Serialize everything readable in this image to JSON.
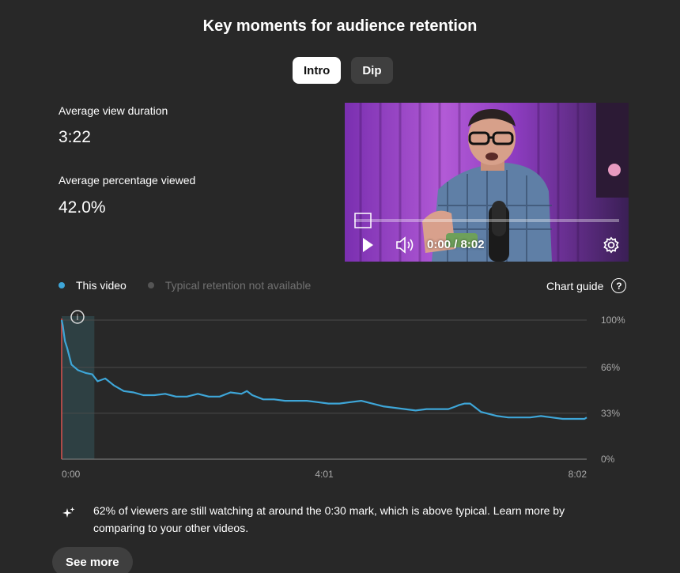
{
  "header": {
    "title": "Key moments for audience retention"
  },
  "tabs": [
    {
      "label": "Intro",
      "active": true
    },
    {
      "label": "Dip",
      "active": false
    }
  ],
  "metrics": {
    "avg_view_duration_label": "Average view duration",
    "avg_view_duration_value": "3:22",
    "avg_pct_viewed_label": "Average percentage viewed",
    "avg_pct_viewed_value": "42.0%"
  },
  "player": {
    "time_display": "0:00 / 8:02",
    "progress": 0.0,
    "icons": [
      "play-icon",
      "volume-icon",
      "settings-gear-icon"
    ]
  },
  "legend": {
    "this_video": "This video",
    "typical": "Typical retention not available",
    "this_video_color": "#3ea6d8",
    "typical_color": "#555555"
  },
  "chart_guide": {
    "label": "Chart guide",
    "icon": "help-icon"
  },
  "chart_data": {
    "type": "line",
    "series": [
      {
        "name": "This video",
        "color": "#3ea6d8",
        "x": [
          0,
          1,
          3,
          5,
          9,
          15,
          22,
          28,
          33,
          40,
          48,
          57,
          66,
          75,
          85,
          95,
          105,
          115,
          125,
          135,
          145,
          155,
          165,
          170,
          175,
          185,
          195,
          205,
          215,
          225,
          235,
          245,
          255,
          265,
          275,
          285,
          295,
          305,
          315,
          325,
          335,
          345,
          355,
          362,
          365,
          370,
          375,
          380,
          385,
          390,
          395,
          400,
          410,
          420,
          430,
          440,
          450,
          460,
          470,
          480,
          482
        ],
        "y": [
          100,
          96,
          85,
          80,
          68,
          64,
          62,
          61,
          56,
          58,
          53,
          49,
          48,
          46,
          46,
          47,
          45,
          45,
          47,
          45,
          45,
          48,
          47,
          49,
          46,
          43,
          43,
          42,
          42,
          42,
          41,
          40,
          40,
          41,
          42,
          40,
          38,
          37,
          36,
          35,
          36,
          36,
          36,
          38,
          39,
          40,
          40,
          37,
          34,
          33,
          32,
          31,
          30,
          30,
          30,
          31,
          30,
          29,
          29,
          29,
          30
        ]
      }
    ],
    "x_ticks": [
      "0:00",
      "4:01",
      "8:02"
    ],
    "x_range": [
      0,
      482
    ],
    "y_ticks": [
      "100%",
      "66%",
      "33%",
      "0%"
    ],
    "ylim": [
      0,
      100
    ],
    "intro_highlight_end": 30,
    "grid": true
  },
  "insight": {
    "text": "62% of viewers are still watching at around the 0:30 mark, which is above typical. Learn more by comparing to your other videos.",
    "icon": "sparkle-icon"
  },
  "see_more": {
    "label": "See more"
  }
}
